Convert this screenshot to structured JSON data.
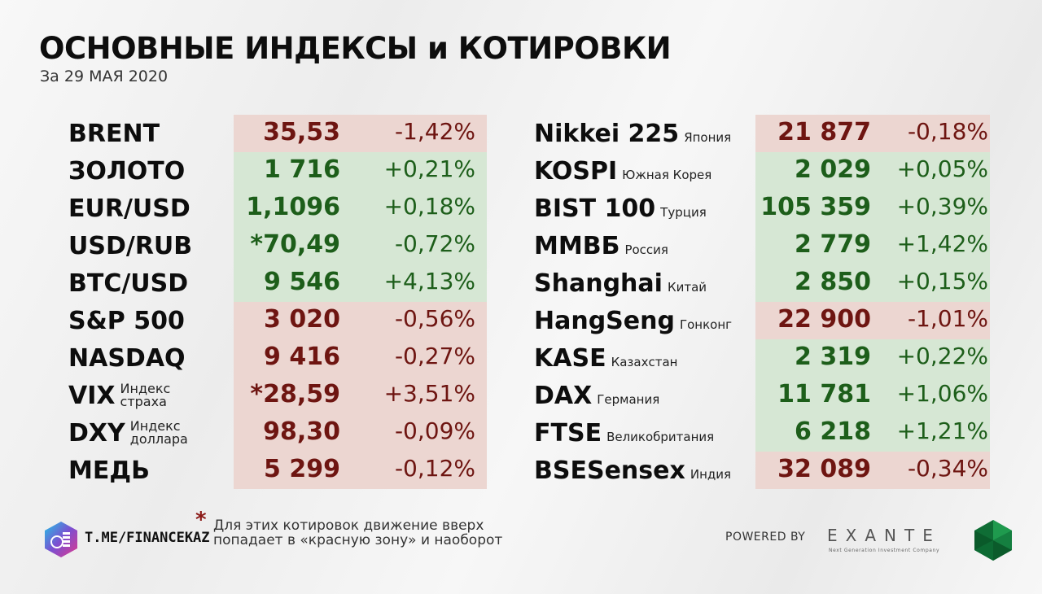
{
  "header": {
    "title": "ОСНОВНЫЕ ИНДЕКСЫ и КОТИРОВКИ",
    "subtitle": "За 29 МАЯ 2020"
  },
  "left_table": [
    {
      "name": "BRENT",
      "note": "",
      "value": "35,53",
      "change": "-1,42%",
      "zone": "red"
    },
    {
      "name": "ЗОЛОТО",
      "note": "",
      "value": "1 716",
      "change": "+0,21%",
      "zone": "green"
    },
    {
      "name": "EUR/USD",
      "note": "",
      "value": "1,1096",
      "change": "+0,18%",
      "zone": "green"
    },
    {
      "name": "USD/RUB",
      "note": "",
      "value": "*70,49",
      "change": "-0,72%",
      "zone": "green"
    },
    {
      "name": "BTC/USD",
      "note": "",
      "value": "9 546",
      "change": "+4,13%",
      "zone": "green"
    },
    {
      "name": "S&P 500",
      "note": "",
      "value": "3 020",
      "change": "-0,56%",
      "zone": "red"
    },
    {
      "name": "NASDAQ",
      "note": "",
      "value": "9 416",
      "change": "-0,27%",
      "zone": "red"
    },
    {
      "name": "VIX",
      "note_line1": "Индекс",
      "note_line2": "страха",
      "value": "*28,59",
      "change": "+3,51%",
      "zone": "red"
    },
    {
      "name": "DXY",
      "note_line1": "Индекс",
      "note_line2": "доллара",
      "value": "98,30",
      "change": "-0,09%",
      "zone": "red"
    },
    {
      "name": "МЕДЬ",
      "note": "",
      "value": "5 299",
      "change": "-0,12%",
      "zone": "red"
    }
  ],
  "right_table": [
    {
      "name": "Nikkei 225",
      "note": "Япония",
      "value": "21 877",
      "change": "-0,18%",
      "zone": "red"
    },
    {
      "name": "KOSPI",
      "note": "Южная Корея",
      "value": "2 029",
      "change": "+0,05%",
      "zone": "green"
    },
    {
      "name": "BIST 100",
      "note": "Турция",
      "value": "105 359",
      "change": "+0,39%",
      "zone": "green"
    },
    {
      "name": "ММВБ",
      "note": "Россия",
      "value": "2 779",
      "change": "+1,42%",
      "zone": "green"
    },
    {
      "name": "Shanghai",
      "note": "Китай",
      "value": "2 850",
      "change": "+0,15%",
      "zone": "green"
    },
    {
      "name": "HangSeng",
      "note": "Гонконг",
      "value": "22 900",
      "change": "-1,01%",
      "zone": "red"
    },
    {
      "name": "KASE",
      "note": "Казахстан",
      "value": "2 319",
      "change": "+0,22%",
      "zone": "green"
    },
    {
      "name": "DAX",
      "note": "Германия",
      "value": "11 781",
      "change": "+1,06%",
      "zone": "green"
    },
    {
      "name": "FTSE",
      "note": "Великобритания",
      "value": "6 218",
      "change": "+1,21%",
      "zone": "green"
    },
    {
      "name": "BSESensex",
      "note": "Индия",
      "value": "32 089",
      "change": "-0,34%",
      "zone": "red"
    }
  ],
  "footer": {
    "telegram": "T.ME/FINANCEKAZ",
    "asterisk": "*",
    "footnote": "Для этих котировок движение вверх попадает в «красную зону» и наоборот",
    "powered_by": "POWERED BY",
    "brand": "EXANTE",
    "brand_tagline": "Next Generation Investment Company"
  },
  "colors": {
    "red_zone": "#ecd6d1",
    "green_zone": "#d6e7d4",
    "red_text": "#6e1511",
    "green_text": "#1d5e1a"
  }
}
